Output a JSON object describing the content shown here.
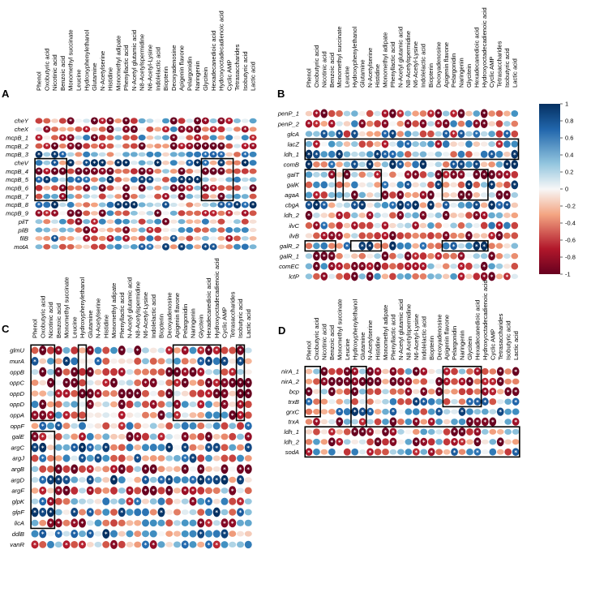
{
  "chart_data": [
    {
      "type": "heatmap",
      "panel_label": "A",
      "columns": [
        "Phenol",
        "Oxobutyric acid",
        "Nicotinic acid",
        "Benzoic acid",
        "Monomethyl succinate",
        "Leucine",
        "Hydroxyphenylethanol",
        "Glutamine",
        "N-Acetylserine",
        "Histidine",
        "Monomethyl adipate",
        "Phenyllactic acid",
        "N-Acetyl glutamic acid",
        "N8-Acetylspermidine",
        "N6-Acetyl-Lysine",
        "Indolelactic acid",
        "Biopterin",
        "Deoxyadenosine",
        "Apigenin flavone",
        "Pelargonidin",
        "Naringenin",
        "Glycitein",
        "Hexadecanedioic acid",
        "Hydroxyoctadecadienoic acid",
        "Cyclic AMP",
        "Tetrasaccharides",
        "Isobutyric acid",
        "Lactic acid"
      ],
      "rows": [
        "cheY",
        "cheX",
        "mcpB_1",
        "mcpB_2",
        "mcpB_3",
        "cheV",
        "mcpB_4",
        "mcpB_5",
        "mcpB_6",
        "mcpB_7",
        "mcpB_8",
        "mcpB_9",
        "pilT",
        "pilB",
        "filB",
        "motA"
      ],
      "seed": 11,
      "boxes": [
        [
          5,
          0,
          9,
          3
        ],
        [
          5,
          21,
          9,
          24
        ]
      ]
    },
    {
      "type": "heatmap",
      "panel_label": "B",
      "columns": [
        "Phenol",
        "Oxobutyric acid",
        "Nicotinic acid",
        "Benzoic acid",
        "Monomethyl succinate",
        "Leucine",
        "Hydroxyphenylethanol",
        "Glutamine",
        "N-Acetylserine",
        "Histidine",
        "Monomethyl adipate",
        "Phenyllactic acid",
        "N-Acetyl glutamic acid",
        "N8-Acetylspermidine",
        "N6-Acetyl-Lysine",
        "Indolelactic acid",
        "Biopterin",
        "Deoxyadenosine",
        "Apigenin flavone",
        "Pelargonidin",
        "Naringenin",
        "Glycitein",
        "Hexadecanedioic acid",
        "Hydroxyoctadecadienoic acid",
        "Cyclic AMP",
        "Tetrasaccharides",
        "Isobutyric acid",
        "Lactic acid"
      ],
      "rows": [
        "penP_1",
        "penP_2",
        "glcA",
        "lacZ",
        "ldh_1",
        "comB",
        "galT",
        "galK",
        "agaA",
        "cbgA",
        "ldh_2",
        "ilvC",
        "ilvB",
        "galR_2",
        "galR_1",
        "comEC",
        "lctP"
      ],
      "seed": 23,
      "boxes": [
        [
          3,
          0,
          4,
          27
        ],
        [
          6,
          0,
          8,
          3
        ],
        [
          6,
          5,
          8,
          9
        ],
        [
          6,
          18,
          8,
          23
        ],
        [
          13,
          0,
          13,
          3
        ],
        [
          13,
          6,
          13,
          9
        ],
        [
          13,
          18,
          13,
          23
        ]
      ]
    },
    {
      "type": "heatmap",
      "panel_label": "C",
      "columns": [
        "Phenol",
        "Oxobutyric acid",
        "Nicotinic acid",
        "Benzoic acid",
        "Monomethyl succinate",
        "Leucine",
        "Hydroxyphenylethanol",
        "Glutamine",
        "N-Acetylserine",
        "Histidine",
        "Monomethyl adipate",
        "Phenyllactic acid",
        "N-Acetyl glutamic acid",
        "N8-Acetylspermidine",
        "N6-Acetyl-Lysine",
        "Indolelactic acid",
        "Biopterin",
        "Deoxyadenosine",
        "Apigenin flavone",
        "Pelargonidin",
        "Naringenin",
        "Glycitein",
        "Hexadecanedioic acid",
        "Hydroxyoctadecadienoic acid",
        "Cyclic AMP",
        "Tetrasaccharides",
        "Isobutyric acid",
        "Lactic acid"
      ],
      "rows": [
        "glmU",
        "murA",
        "oppB",
        "oppC",
        "oppD",
        "oppD",
        "oppA",
        "oppF",
        "galE",
        "argC",
        "argJ",
        "argB",
        "argD",
        "argF",
        "glpK",
        "glpF",
        "licA",
        "ddlB",
        "vanR"
      ],
      "seed": 37,
      "boxes": [
        [
          0,
          0,
          6,
          2
        ],
        [
          0,
          6,
          6,
          6
        ],
        [
          0,
          18,
          6,
          23
        ],
        [
          0,
          26,
          6,
          26
        ],
        [
          8,
          0,
          16,
          2
        ]
      ]
    },
    {
      "type": "heatmap",
      "panel_label": "D",
      "columns": [
        "Phenol",
        "Oxobutyric acid",
        "Nicotinic acid",
        "Benzoic acid",
        "Monomethyl succinate",
        "Leucine",
        "Hydroxyphenylethanol",
        "Glutamine",
        "N-Acetylserine",
        "Histidine",
        "Monomethyl adipate",
        "Phenyllactic acid",
        "N-Acetyl glutamic acid",
        "N8 Acetylspermidine",
        "N6-Acetyl-Lysine",
        "Indolelactic acid",
        "Biopterin",
        "Deoxyadenosine",
        "Apigenin flavone",
        "Pelargonidin",
        "Naringenin",
        "Glycitein",
        "Hexadecanedioic acid",
        "Hydroxyoctadecadienoic acid",
        "Cyclic AMP",
        "Tetrasaccharides",
        "Isobutyric acid",
        "Lactic acid"
      ],
      "rows": [
        "nirA_1",
        "nirA_2",
        "bcp",
        "trxB",
        "grxC",
        "trxA",
        "ldh_1",
        "ldh_2",
        "sodA"
      ],
      "seed": 53,
      "boxes": [
        [
          0,
          0,
          4,
          1
        ],
        [
          0,
          6,
          5,
          7
        ],
        [
          0,
          18,
          3,
          22
        ],
        [
          6,
          0,
          8,
          27
        ]
      ]
    }
  ],
  "colorbar": {
    "ticks": [
      "1",
      "0.8",
      "0.6",
      "0.4",
      "0.2",
      "0",
      "-0.2",
      "-0.4",
      "-0.6",
      "-0.8",
      "-1"
    ],
    "range": [
      -1,
      1
    ],
    "colors": {
      "high": "#053061",
      "mid": "#f7f7f7",
      "low": "#67001f",
      "box": "#000000"
    }
  }
}
